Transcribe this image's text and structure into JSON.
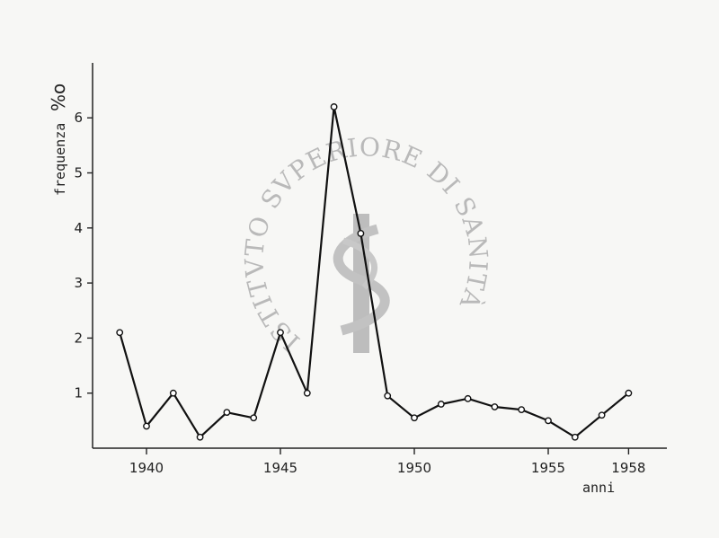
{
  "watermark": {
    "text": "ISTITVTO SVPERIORE DI SANITÀ",
    "color": "#b5b5b5"
  },
  "chart_data": {
    "type": "line",
    "xlabel": "anni",
    "ylabel": "frequenza",
    "ylabel_unit": "%o",
    "x_ticks": [
      1940,
      1945,
      1950,
      1955,
      1958
    ],
    "y_ticks": [
      1,
      2,
      3,
      4,
      5,
      6
    ],
    "xlim": [
      1938.5,
      1959.0
    ],
    "ylim": [
      0.0,
      7.0
    ],
    "grid": false,
    "marker": "hollow-circle",
    "line_color": "#111111",
    "series": [
      {
        "x": [
          1939,
          1940,
          1941,
          1942,
          1943,
          1944,
          1945,
          1946,
          1947,
          1948,
          1949,
          1950,
          1951,
          1952,
          1953,
          1954,
          1955,
          1956,
          1957,
          1958
        ],
        "values": [
          2.1,
          0.4,
          1.0,
          0.2,
          0.65,
          0.55,
          2.1,
          1.0,
          6.2,
          3.9,
          0.95,
          0.55,
          0.8,
          0.9,
          0.75,
          0.7,
          0.5,
          0.2,
          0.6,
          1.0
        ]
      }
    ]
  }
}
